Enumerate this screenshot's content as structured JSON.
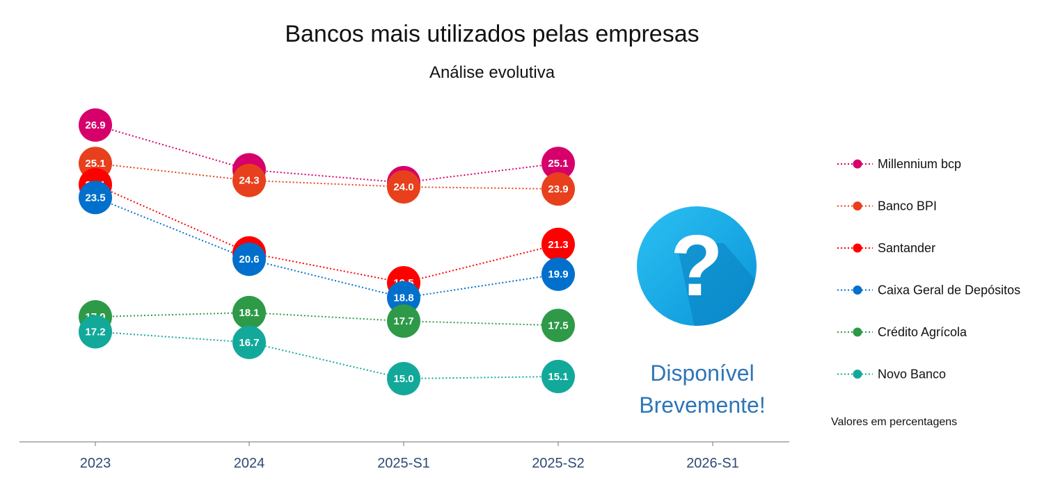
{
  "chart_data": {
    "type": "line",
    "title": "Bancos mais utilizados pelas empresas",
    "subtitle": "Análise evolutiva",
    "categories": [
      "2023",
      "2024",
      "2025-S1",
      "2025-S2",
      "2026-S1"
    ],
    "ylim": [
      13,
      28
    ],
    "grid": false,
    "legend_position": "right",
    "units_note": "Valores em percentagens",
    "series": [
      {
        "name": "Millennium bcp",
        "color": "#d6006b",
        "values": [
          26.9,
          24.8,
          24.2,
          25.1,
          null
        ]
      },
      {
        "name": "Banco BPI",
        "color": "#e8401c",
        "values": [
          25.1,
          24.3,
          24.0,
          23.9,
          null
        ]
      },
      {
        "name": "Santander",
        "color": "#ff0000",
        "values": [
          24.1,
          20.9,
          19.5,
          21.3,
          null
        ]
      },
      {
        "name": "Caixa Geral de Depósitos",
        "color": "#0070cc",
        "values": [
          23.5,
          20.6,
          18.8,
          19.9,
          null
        ]
      },
      {
        "name": "Crédito Agrícola",
        "color": "#2e9a48",
        "values": [
          17.9,
          18.1,
          17.7,
          17.5,
          null
        ]
      },
      {
        "name": "Novo Banco",
        "color": "#12a99a",
        "values": [
          17.2,
          16.7,
          15.0,
          15.1,
          null
        ]
      }
    ],
    "placeholder": {
      "category": "2026-S1",
      "icon": "question-mark-icon",
      "icon_color": "#1ba8e8",
      "lines": [
        "Disponível",
        "Brevemente!"
      ]
    }
  }
}
